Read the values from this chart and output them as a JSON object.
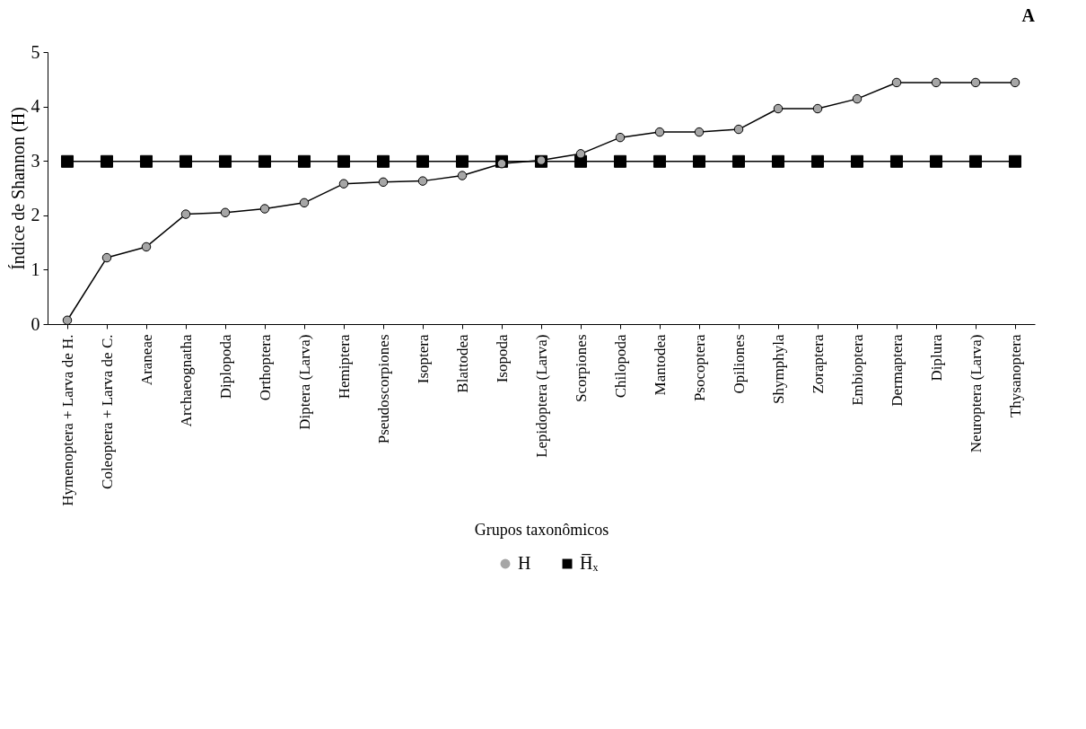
{
  "chart_data": {
    "type": "line",
    "xlabel": "Grupos taxonômicos",
    "ylabel": "Índice de Shannon (H)",
    "annotations": [
      "A"
    ],
    "categories": [
      "Hymenoptera + Larva de H.",
      "Coleoptera + Larva de C.",
      "Araneae",
      "Archaeognatha",
      "Diplopoda",
      "Orthoptera",
      "Diptera  (Larva)",
      "Hemiptera",
      "Pseudoscorpiones",
      "Isoptera",
      "Blattodea",
      "Isopoda",
      "Lepidoptera  (Larva)",
      "Scorpiones",
      "Chilopoda",
      "Mantodea",
      "Psocoptera",
      "Opiliones",
      "Shymphyla",
      "Zoraptera",
      "Embioptera",
      "Dermaptera",
      "Diplura",
      "Neuroptera (Larva)",
      "Thysanoptera"
    ],
    "series": [
      {
        "name": "H",
        "color": "#a6a6a6",
        "marker": "circle",
        "values": [
          0.07,
          1.22,
          1.42,
          2.02,
          2.05,
          2.12,
          2.23,
          2.58,
          2.61,
          2.63,
          2.73,
          2.95,
          3.01,
          3.13,
          3.43,
          3.53,
          3.53,
          3.58,
          3.96,
          3.96,
          4.14,
          4.44,
          4.44,
          4.44,
          4.44
        ]
      },
      {
        "name": "H̅ₓ",
        "color": "#000000",
        "marker": "square",
        "values": [
          2.99,
          2.99,
          2.99,
          2.99,
          2.99,
          2.99,
          2.99,
          2.99,
          2.99,
          2.99,
          2.99,
          2.99,
          2.99,
          2.99,
          2.99,
          2.99,
          2.99,
          2.99,
          2.99,
          2.99,
          2.99,
          2.99,
          2.99,
          2.99,
          2.99
        ]
      }
    ],
    "ylim": [
      0,
      5
    ],
    "yticks": [
      0,
      1,
      2,
      3,
      4,
      5
    ],
    "grid": false,
    "legend": "bottom",
    "line_style": "solid"
  }
}
